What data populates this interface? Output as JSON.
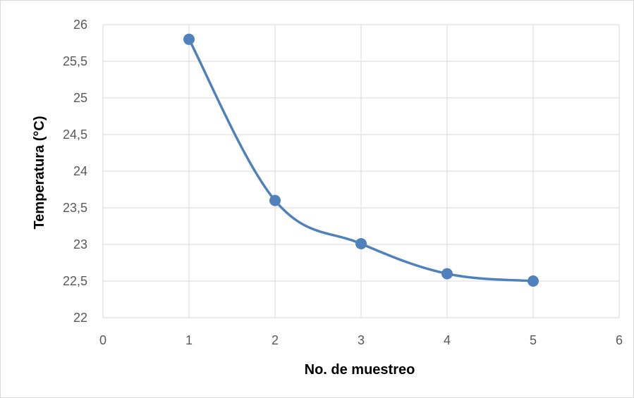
{
  "chart_data": {
    "type": "scatter",
    "title": "",
    "xlabel": "No. de muestreo",
    "ylabel": "Temperatura (°C)",
    "xlim": [
      0,
      6
    ],
    "ylim": [
      22,
      26
    ],
    "x_ticks": [
      0,
      1,
      2,
      3,
      4,
      5,
      6
    ],
    "y_ticks": [
      22,
      22.5,
      23,
      23.5,
      24,
      24.5,
      25,
      25.5,
      26
    ],
    "x_tick_labels": [
      "0",
      "1",
      "2",
      "3",
      "4",
      "5",
      "6"
    ],
    "y_tick_labels": [
      "22",
      "22,5",
      "23",
      "23,5",
      "24",
      "24,5",
      "25",
      "25,5",
      "26"
    ],
    "grid": true,
    "legend": "none",
    "series": [
      {
        "x": [
          1,
          2,
          3,
          4,
          5
        ],
        "y": [
          25.8,
          23.6,
          23.01,
          22.6,
          22.5
        ],
        "color": "#4f81bd",
        "line": "smooth",
        "marker": "circle"
      }
    ]
  }
}
